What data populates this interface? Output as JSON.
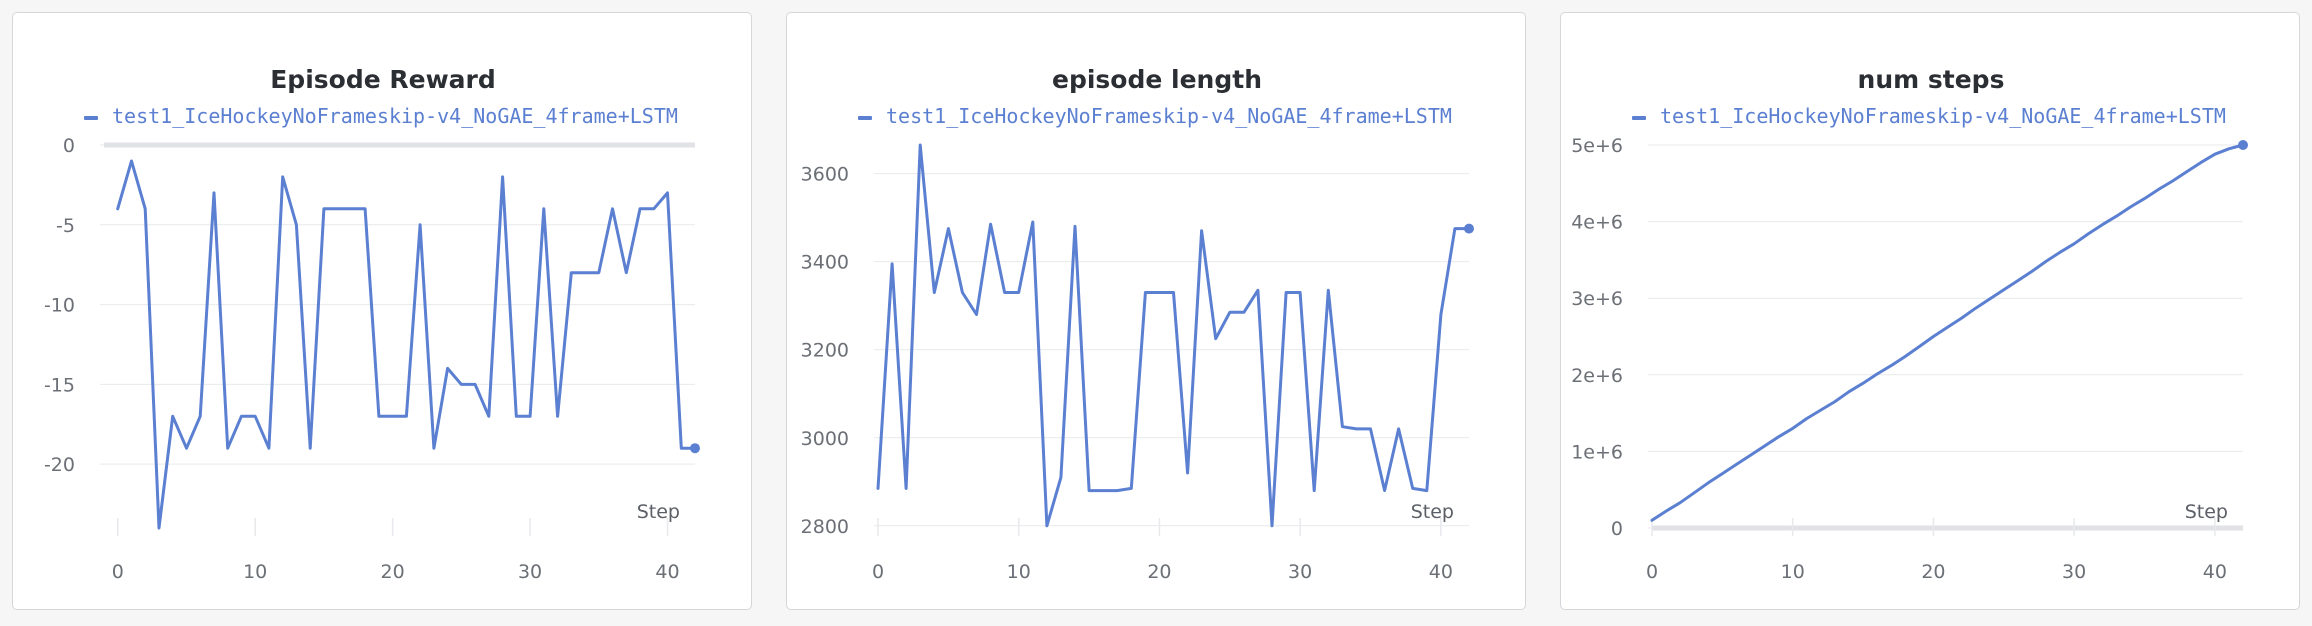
{
  "colors": {
    "series": "#5b7fd1",
    "grid": "#e8e9ec",
    "baseline": "#e1e2e5"
  },
  "chart_data": [
    {
      "type": "line",
      "title": "Episode Reward",
      "xlabel": "Step",
      "ylabel": "",
      "xlim": [
        -1,
        42
      ],
      "ylim": [
        -24,
        0
      ],
      "x_ticks": [
        0,
        10,
        20,
        30,
        40
      ],
      "y_ticks": [
        0,
        -5,
        -10,
        -15,
        -20
      ],
      "y_tick_labels": [
        "0",
        "-5",
        "-10",
        "-15",
        "-20"
      ],
      "baseline_y": 0,
      "series": [
        {
          "name": "test1_IceHockeyNoFrameskip-v4_NoGAE_4frame+LSTM",
          "x": [
            0,
            1,
            2,
            3,
            4,
            5,
            6,
            7,
            8,
            9,
            10,
            11,
            12,
            13,
            14,
            15,
            16,
            17,
            18,
            19,
            20,
            21,
            22,
            23,
            24,
            25,
            26,
            27,
            28,
            29,
            30,
            31,
            32,
            33,
            34,
            35,
            36,
            37,
            38,
            39,
            40,
            41,
            42
          ],
          "y": [
            -4,
            -1,
            -4,
            -24,
            -17,
            -19,
            -17,
            -3,
            -19,
            -17,
            -17,
            -19,
            -2,
            -5,
            -19,
            -4,
            -4,
            -4,
            -4,
            -17,
            -17,
            -17,
            -5,
            -19,
            -14,
            -15,
            -15,
            -17,
            -2,
            -17,
            -17,
            -4,
            -17,
            -8,
            -8,
            -8,
            -4,
            -8,
            -4,
            -4,
            -3,
            -19,
            -19
          ]
        }
      ]
    },
    {
      "type": "line",
      "title": "episode length",
      "xlabel": "Step",
      "ylabel": "",
      "xlim": [
        0,
        42
      ],
      "ylim": [
        2795,
        3665
      ],
      "x_ticks": [
        0,
        10,
        20,
        30,
        40
      ],
      "y_ticks": [
        3600,
        3400,
        3200,
        3000,
        2800
      ],
      "y_tick_labels": [
        "3600",
        "3400",
        "3200",
        "3000",
        "2800"
      ],
      "series": [
        {
          "name": "test1_IceHockeyNoFrameskip-v4_NoGAE_4frame+LSTM",
          "x": [
            0,
            1,
            2,
            3,
            4,
            5,
            6,
            7,
            8,
            9,
            10,
            11,
            12,
            13,
            14,
            15,
            16,
            17,
            18,
            19,
            20,
            21,
            22,
            23,
            24,
            25,
            26,
            27,
            28,
            29,
            30,
            31,
            32,
            33,
            34,
            35,
            36,
            37,
            38,
            39,
            40,
            41,
            42
          ],
          "y": [
            2885,
            3395,
            2885,
            3665,
            3330,
            3475,
            3330,
            3280,
            3485,
            3330,
            3330,
            3490,
            2800,
            2910,
            3480,
            2880,
            2880,
            2880,
            2885,
            3330,
            3330,
            3330,
            2920,
            3470,
            3225,
            3285,
            3285,
            3335,
            2800,
            3330,
            3330,
            2880,
            3335,
            3025,
            3020,
            3020,
            2880,
            3020,
            2885,
            2880,
            3280,
            3475,
            3475
          ]
        }
      ]
    },
    {
      "type": "line",
      "title": "num steps",
      "xlabel": "Step",
      "ylabel": "",
      "xlim": [
        0,
        42
      ],
      "ylim": [
        0,
        5000000
      ],
      "x_ticks": [
        0,
        10,
        20,
        30,
        40
      ],
      "y_ticks": [
        5000000,
        4000000,
        3000000,
        2000000,
        1000000,
        0
      ],
      "y_tick_labels": [
        "5e+6",
        "4e+6",
        "3e+6",
        "2e+6",
        "1e+6",
        "0"
      ],
      "baseline_y": 0,
      "series": [
        {
          "name": "test1_IceHockeyNoFrameskip-v4_NoGAE_4frame+LSTM",
          "x": [
            0,
            1,
            2,
            3,
            4,
            5,
            6,
            7,
            8,
            9,
            10,
            11,
            12,
            13,
            14,
            15,
            16,
            17,
            18,
            19,
            20,
            21,
            22,
            23,
            24,
            25,
            26,
            27,
            28,
            29,
            30,
            31,
            32,
            33,
            34,
            35,
            36,
            37,
            38,
            39,
            40,
            41,
            42
          ],
          "y": [
            100000,
            220000,
            330000,
            460000,
            590000,
            710000,
            830000,
            950000,
            1070000,
            1190000,
            1300000,
            1430000,
            1540000,
            1650000,
            1780000,
            1890000,
            2010000,
            2120000,
            2240000,
            2370000,
            2500000,
            2620000,
            2740000,
            2870000,
            2990000,
            3110000,
            3230000,
            3350000,
            3480000,
            3600000,
            3710000,
            3840000,
            3960000,
            4070000,
            4190000,
            4300000,
            4420000,
            4530000,
            4650000,
            4770000,
            4880000,
            4950000,
            5000000
          ]
        }
      ]
    }
  ]
}
